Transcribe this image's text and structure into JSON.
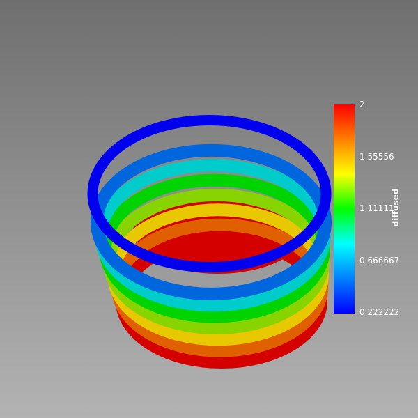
{
  "colorbar": {
    "title": "diffused",
    "ticks": [
      "2",
      "1.55556",
      "1.11111",
      "0.666667",
      "0.222222"
    ],
    "range": [
      0.222222,
      2
    ],
    "colormap": [
      "#0000ff",
      "#0080ff",
      "#00ffff",
      "#00ff00",
      "#ffff00",
      "#ff8000",
      "#ff0000"
    ]
  },
  "background": {
    "top": "#6f6f6f",
    "bottom": "#b3b3b3"
  },
  "rendering": {
    "object": "cylinder-shell",
    "band_colors": [
      "#d40000",
      "#e06000",
      "#e8c800",
      "#88d400",
      "#00d400",
      "#00cccc",
      "#0066dd",
      "#0000ee"
    ],
    "floor_color": "#d40000"
  }
}
